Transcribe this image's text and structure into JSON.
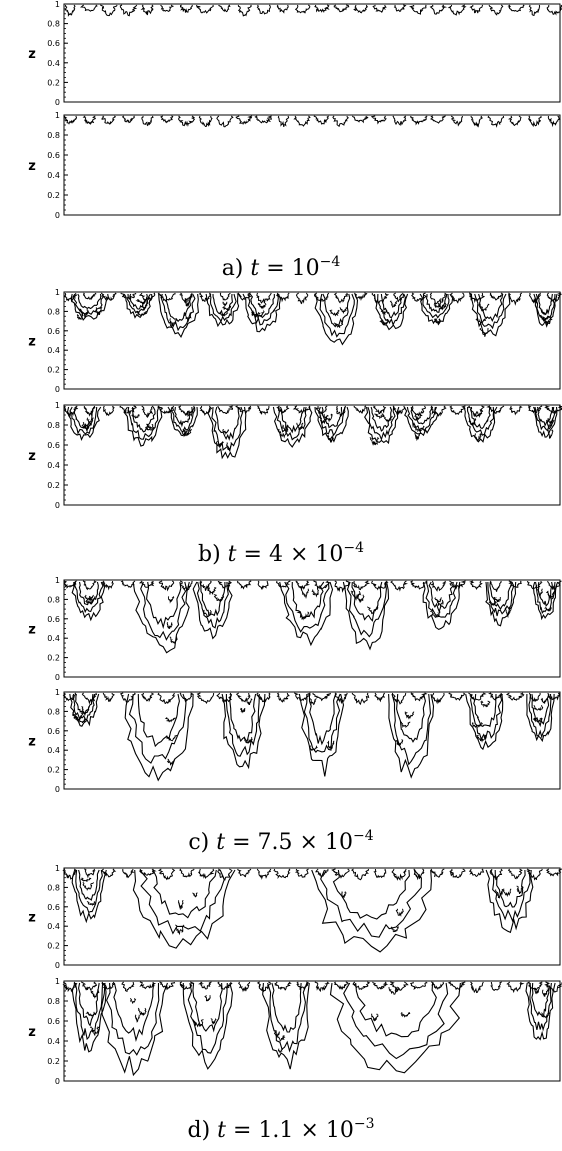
{
  "figure": {
    "line_color": "#000000",
    "background": "#ffffff",
    "captions": [
      {
        "label": "a)",
        "var": "t",
        "eq": "=",
        "mantissa": "",
        "times": "",
        "base": "10",
        "exponent": "−4"
      },
      {
        "label": "b)",
        "var": "t",
        "eq": "=",
        "mantissa": "4",
        "times": "×",
        "base": "10",
        "exponent": "−4"
      },
      {
        "label": "c)",
        "var": "t",
        "eq": "=",
        "mantissa": "7.5",
        "times": "×",
        "base": "10",
        "exponent": "−4"
      },
      {
        "label": "d)",
        "var": "t",
        "eq": "=",
        "mantissa": "1.1",
        "times": "×",
        "base": "10",
        "exponent": "−3"
      }
    ]
  },
  "chart_data": [
    {
      "type": "contour",
      "panel": "a-upper",
      "ylabel": "z",
      "ylim": [
        0,
        1
      ],
      "yticks": [
        "0",
        "0.2",
        "0.4",
        "0.6",
        "0.8",
        "1"
      ],
      "plumes": []
    },
    {
      "type": "contour",
      "panel": "a-lower",
      "ylabel": "z",
      "ylim": [
        0,
        1
      ],
      "yticks": [
        "0",
        "0.2",
        "0.4",
        "0.6",
        "0.8",
        "1"
      ],
      "plumes": []
    },
    {
      "type": "contour",
      "panel": "b-upper",
      "ylabel": "z",
      "ylim": [
        0,
        1
      ],
      "yticks": [
        "0",
        "0.2",
        "0.4",
        "0.6",
        "0.8",
        "1"
      ],
      "plumes": [
        {
          "x": 0.05,
          "w": 0.08,
          "d": 0.28
        },
        {
          "x": 0.15,
          "w": 0.06,
          "d": 0.25
        },
        {
          "x": 0.23,
          "w": 0.09,
          "d": 0.45
        },
        {
          "x": 0.32,
          "w": 0.07,
          "d": 0.35
        },
        {
          "x": 0.4,
          "w": 0.08,
          "d": 0.4
        },
        {
          "x": 0.55,
          "w": 0.09,
          "d": 0.55
        },
        {
          "x": 0.66,
          "w": 0.07,
          "d": 0.4
        },
        {
          "x": 0.75,
          "w": 0.07,
          "d": 0.32
        },
        {
          "x": 0.86,
          "w": 0.08,
          "d": 0.45
        },
        {
          "x": 0.97,
          "w": 0.05,
          "d": 0.35
        }
      ]
    },
    {
      "type": "contour",
      "panel": "b-lower",
      "ylabel": "z",
      "ylim": [
        0,
        1
      ],
      "yticks": [
        "0",
        "0.2",
        "0.4",
        "0.6",
        "0.8",
        "1"
      ],
      "plumes": [
        {
          "x": 0.04,
          "w": 0.07,
          "d": 0.35
        },
        {
          "x": 0.16,
          "w": 0.08,
          "d": 0.4
        },
        {
          "x": 0.24,
          "w": 0.06,
          "d": 0.3
        },
        {
          "x": 0.33,
          "w": 0.08,
          "d": 0.55
        },
        {
          "x": 0.46,
          "w": 0.08,
          "d": 0.4
        },
        {
          "x": 0.54,
          "w": 0.07,
          "d": 0.35
        },
        {
          "x": 0.64,
          "w": 0.07,
          "d": 0.4
        },
        {
          "x": 0.72,
          "w": 0.07,
          "d": 0.3
        },
        {
          "x": 0.84,
          "w": 0.07,
          "d": 0.35
        },
        {
          "x": 0.97,
          "w": 0.05,
          "d": 0.3
        }
      ]
    },
    {
      "type": "contour",
      "panel": "c-upper",
      "ylabel": "z",
      "ylim": [
        0,
        1
      ],
      "yticks": [
        "0",
        "0.2",
        "0.4",
        "0.6",
        "0.8",
        "1"
      ],
      "plumes": [
        {
          "x": 0.05,
          "w": 0.07,
          "d": 0.4
        },
        {
          "x": 0.2,
          "w": 0.12,
          "d": 0.75
        },
        {
          "x": 0.3,
          "w": 0.08,
          "d": 0.6
        },
        {
          "x": 0.49,
          "w": 0.11,
          "d": 0.65
        },
        {
          "x": 0.61,
          "w": 0.1,
          "d": 0.7
        },
        {
          "x": 0.76,
          "w": 0.08,
          "d": 0.5
        },
        {
          "x": 0.88,
          "w": 0.07,
          "d": 0.45
        },
        {
          "x": 0.97,
          "w": 0.05,
          "d": 0.4
        }
      ]
    },
    {
      "type": "contour",
      "panel": "c-lower",
      "ylabel": "z",
      "ylim": [
        0,
        1
      ],
      "yticks": [
        "0",
        "0.2",
        "0.4",
        "0.6",
        "0.8",
        "1"
      ],
      "plumes": [
        {
          "x": 0.04,
          "w": 0.06,
          "d": 0.35
        },
        {
          "x": 0.19,
          "w": 0.15,
          "d": 0.9
        },
        {
          "x": 0.36,
          "w": 0.09,
          "d": 0.85
        },
        {
          "x": 0.52,
          "w": 0.09,
          "d": 0.85
        },
        {
          "x": 0.7,
          "w": 0.1,
          "d": 0.9
        },
        {
          "x": 0.85,
          "w": 0.08,
          "d": 0.6
        },
        {
          "x": 0.96,
          "w": 0.06,
          "d": 0.55
        }
      ]
    },
    {
      "type": "contour",
      "panel": "d-upper",
      "ylabel": "z",
      "ylim": [
        0,
        1
      ],
      "yticks": [
        "0",
        "0.2",
        "0.4",
        "0.6",
        "0.8",
        "1"
      ],
      "plumes": [
        {
          "x": 0.05,
          "w": 0.07,
          "d": 0.55
        },
        {
          "x": 0.24,
          "w": 0.22,
          "d": 0.85
        },
        {
          "x": 0.62,
          "w": 0.26,
          "d": 0.85
        },
        {
          "x": 0.9,
          "w": 0.1,
          "d": 0.65
        }
      ]
    },
    {
      "type": "contour",
      "panel": "d-lower",
      "ylabel": "z",
      "ylim": [
        0,
        1
      ],
      "yticks": [
        "0",
        "0.2",
        "0.4",
        "0.6",
        "0.8",
        "1"
      ],
      "plumes": [
        {
          "x": 0.05,
          "w": 0.07,
          "d": 0.7
        },
        {
          "x": 0.14,
          "w": 0.14,
          "d": 0.92
        },
        {
          "x": 0.29,
          "w": 0.1,
          "d": 0.88
        },
        {
          "x": 0.45,
          "w": 0.1,
          "d": 0.88
        },
        {
          "x": 0.67,
          "w": 0.28,
          "d": 0.92
        },
        {
          "x": 0.96,
          "w": 0.06,
          "d": 0.6
        }
      ]
    }
  ]
}
